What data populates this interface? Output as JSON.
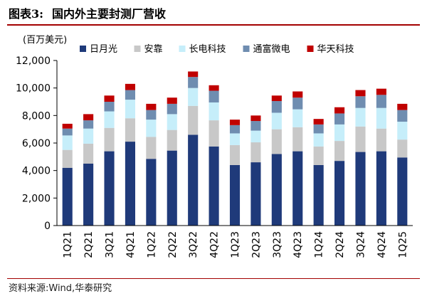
{
  "header": {
    "figure_label": "图表3:",
    "figure_title": "国内外主要封测厂营收"
  },
  "footer": {
    "source": "资料来源:Wind,华泰研究"
  },
  "chart_data": {
    "type": "bar",
    "stacked": true,
    "unit_label": "(百万美元)",
    "categories": [
      "1Q21",
      "2Q21",
      "3Q21",
      "4Q21",
      "1Q22",
      "2Q22",
      "3Q22",
      "4Q22",
      "1Q23",
      "2Q23",
      "3Q23",
      "4Q23",
      "1Q24",
      "2Q24",
      "3Q24",
      "4Q24",
      "1Q25"
    ],
    "ylim": [
      0,
      12000
    ],
    "yticks": [
      0,
      2000,
      4000,
      6000,
      8000,
      10000,
      12000
    ],
    "ytick_labels": [
      "0",
      "2,000",
      "4,000",
      "6,000",
      "8,000",
      "10,000",
      "12,000"
    ],
    "legend_position": "top",
    "grid": false,
    "series": [
      {
        "name": "日月光",
        "color": "#1f3a7a",
        "values": [
          4200,
          4500,
          5400,
          6100,
          4850,
          5450,
          6600,
          5750,
          4400,
          4600,
          5200,
          5400,
          4400,
          4700,
          5350,
          5400,
          4950
        ]
      },
      {
        "name": "安靠",
        "color": "#c8c8c8",
        "values": [
          1300,
          1450,
          1700,
          1700,
          1600,
          1500,
          2100,
          1900,
          1450,
          1450,
          1800,
          1750,
          1350,
          1450,
          1850,
          1650,
          1300
        ]
      },
      {
        "name": "长电科技",
        "color": "#c6eefa",
        "values": [
          1050,
          1100,
          1200,
          1350,
          1250,
          1150,
          1300,
          1300,
          850,
          850,
          1200,
          1300,
          950,
          1200,
          1350,
          1500,
          1300
        ]
      },
      {
        "name": "通富微电",
        "color": "#6f8db0",
        "values": [
          500,
          600,
          700,
          700,
          700,
          750,
          800,
          850,
          600,
          700,
          850,
          850,
          650,
          800,
          850,
          950,
          850
        ]
      },
      {
        "name": "华天科技",
        "color": "#c00000",
        "values": [
          350,
          450,
          450,
          450,
          450,
          450,
          400,
          400,
          400,
          400,
          400,
          450,
          400,
          450,
          450,
          450,
          450
        ]
      }
    ]
  }
}
